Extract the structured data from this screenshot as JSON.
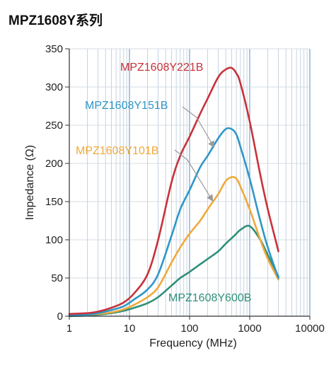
{
  "page": {
    "title": "MPZ1608Y系列"
  },
  "chart_data": {
    "type": "line",
    "title": "MPZ1608Y系列",
    "xlabel": "Frequency (MHz)",
    "ylabel": "Impedance (Ω)",
    "x_scale": "log",
    "xlim": [
      1,
      10000
    ],
    "ylim": [
      0,
      350
    ],
    "x_ticks": [
      1,
      10,
      100,
      1000,
      10000
    ],
    "x_tick_labels": [
      "1",
      "10",
      "100",
      "1000",
      "10000"
    ],
    "y_ticks": [
      0,
      50,
      100,
      150,
      200,
      250,
      300,
      350
    ],
    "y_tick_labels": [
      "0",
      "50",
      "100",
      "150",
      "200",
      "250",
      "300",
      "350"
    ],
    "grid": true,
    "series": [
      {
        "name": "MPZ1608Y221B",
        "color": "#c8323a",
        "x": [
          1,
          2,
          3,
          5,
          8,
          12,
          20,
          30,
          50,
          70,
          100,
          150,
          200,
          300,
          400,
          500,
          600,
          700,
          1000,
          1500,
          2000,
          3000
        ],
        "y": [
          3,
          4,
          6,
          11,
          18,
          30,
          55,
          100,
          175,
          210,
          235,
          265,
          285,
          313,
          323,
          325,
          318,
          305,
          255,
          185,
          140,
          85
        ]
      },
      {
        "name": "MPZ1608Y151B",
        "color": "#2e97c8",
        "x": [
          1,
          2,
          3,
          5,
          8,
          12,
          20,
          30,
          50,
          70,
          100,
          150,
          200,
          300,
          400,
          500,
          600,
          700,
          1000,
          1500,
          2000,
          3000
        ],
        "y": [
          1,
          2,
          4,
          8,
          13,
          22,
          35,
          55,
          105,
          140,
          165,
          195,
          210,
          233,
          245,
          245,
          238,
          222,
          180,
          125,
          90,
          50
        ]
      },
      {
        "name": "MPZ1608Y101B",
        "color": "#f0a93a",
        "x": [
          1,
          2,
          3,
          5,
          8,
          12,
          20,
          30,
          50,
          70,
          100,
          150,
          200,
          300,
          400,
          500,
          600,
          700,
          1000,
          1500,
          2000,
          3000
        ],
        "y": [
          1,
          2,
          3,
          5,
          9,
          15,
          25,
          38,
          70,
          90,
          108,
          125,
          140,
          160,
          177,
          182,
          180,
          170,
          140,
          100,
          75,
          48
        ]
      },
      {
        "name": "MPZ1608Y600B",
        "color": "#2e8f7a",
        "x": [
          1,
          2,
          3,
          5,
          8,
          12,
          20,
          30,
          50,
          70,
          100,
          150,
          200,
          300,
          400,
          500,
          600,
          700,
          1000,
          1500,
          2000,
          3000
        ],
        "y": [
          0,
          1,
          2,
          4,
          7,
          11,
          17,
          25,
          40,
          50,
          58,
          68,
          75,
          85,
          95,
          102,
          108,
          113,
          118,
          100,
          80,
          52
        ]
      }
    ],
    "annotations": [
      {
        "series": "MPZ1608Y151B",
        "arrow": true
      },
      {
        "series": "MPZ1608Y101B",
        "arrow": true
      }
    ]
  }
}
